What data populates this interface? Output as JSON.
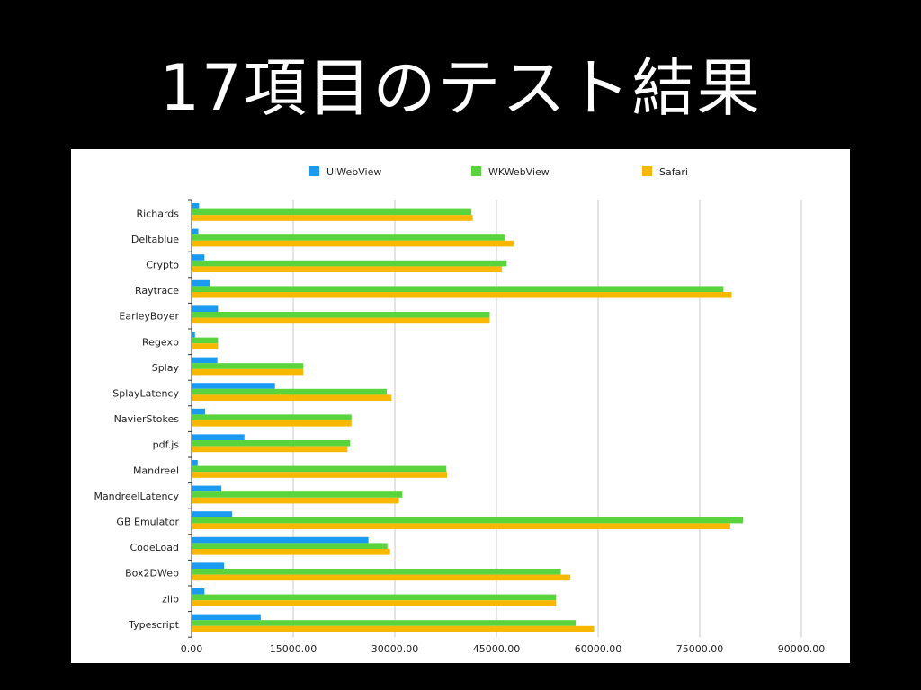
{
  "slide": {
    "title": "17項目のテスト結果"
  },
  "chart_data": {
    "type": "bar",
    "orientation": "horizontal",
    "title": "",
    "xlabel": "",
    "ylabel": "",
    "xlim": [
      0,
      90000
    ],
    "xticks": [
      0,
      15000,
      30000,
      45000,
      60000,
      75000,
      90000
    ],
    "xtick_labels": [
      "0.00",
      "15000.00",
      "30000.00",
      "45000.00",
      "60000.00",
      "75000.00",
      "90000.00"
    ],
    "grid": "vertical",
    "legend_position": "top",
    "categories": [
      "Richards",
      "Deltablue",
      "Crypto",
      "Raytrace",
      "EarleyBoyer",
      "Regexp",
      "Splay",
      "SplayLatency",
      "NavierStokes",
      "pdf.js",
      "Mandreel",
      "MandreelLatency",
      "GB Emulator",
      "CodeLoad",
      "Box2DWeb",
      "zlib",
      "Typescript"
    ],
    "series": [
      {
        "name": "UIWebView",
        "color": "#1a9af0",
        "values": [
          1100,
          1000,
          1900,
          2700,
          3900,
          500,
          3800,
          12300,
          2000,
          7800,
          900,
          4400,
          6000,
          26100,
          4800,
          1900,
          10200
        ]
      },
      {
        "name": "WKWebView",
        "color": "#5ad43c",
        "values": [
          41300,
          46300,
          46500,
          78500,
          44000,
          3900,
          16500,
          28800,
          23600,
          23400,
          37600,
          31100,
          81400,
          28900,
          54500,
          53800,
          56700
        ]
      },
      {
        "name": "Safari",
        "color": "#f9b800",
        "values": [
          41500,
          47500,
          45800,
          79700,
          44000,
          3900,
          16500,
          29500,
          23600,
          23000,
          37700,
          30600,
          79500,
          29300,
          55900,
          53800,
          59400
        ]
      }
    ]
  }
}
